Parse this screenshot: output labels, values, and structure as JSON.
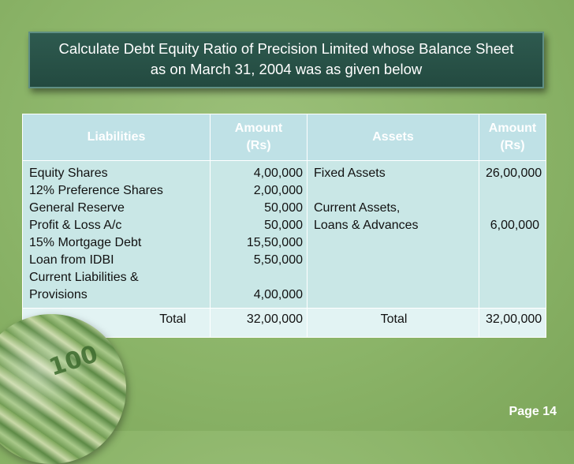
{
  "title": {
    "line1": "Calculate Debt Equity Ratio  of Precision Limited whose Balance Sheet",
    "line2": "as on March 31, 2004 was as given below"
  },
  "table": {
    "headers": {
      "liabilities": "Liabilities",
      "amount_left": [
        "Amount",
        "(Rs)"
      ],
      "assets": "Assets",
      "amount_right": [
        "Amount",
        "(Rs)"
      ]
    },
    "liabilities": [
      {
        "label": "Equity Shares",
        "amount": "4,00,000"
      },
      {
        "label": "12% Preference Shares",
        "amount": "2,00,000"
      },
      {
        "label": "General Reserve",
        "amount": "50,000"
      },
      {
        "label": "Profit & Loss A/c",
        "amount": "50,000"
      },
      {
        "label": "15% Mortgage Debt",
        "amount": "15,50,000"
      },
      {
        "label": "Loan from IDBI",
        "amount": "5,50,000"
      },
      {
        "label": "Current Liabilities &",
        "amount": ""
      },
      {
        "label": "Provisions",
        "amount": "4,00,000"
      }
    ],
    "assets": [
      {
        "label": "Fixed Assets",
        "amount": "26,00,000"
      },
      {
        "label": "",
        "amount": ""
      },
      {
        "label": "Current Assets,",
        "amount": ""
      },
      {
        "label": "Loans & Advances",
        "amount": "6,00,000"
      },
      {
        "label": "",
        "amount": ""
      },
      {
        "label": "",
        "amount": ""
      },
      {
        "label": "",
        "amount": ""
      },
      {
        "label": "",
        "amount": ""
      }
    ],
    "total": {
      "left_label": "Total",
      "left_amount": "32,00,000",
      "right_label": "Total",
      "right_amount": "32,00,000"
    }
  },
  "decoration": {
    "banknote_text": "100"
  },
  "footer": {
    "page": "Page 14"
  }
}
